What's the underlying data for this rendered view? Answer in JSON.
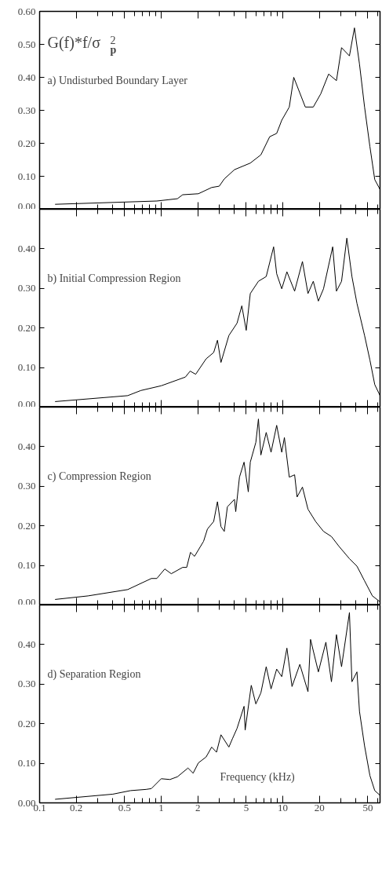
{
  "chart_data": [
    {
      "type": "line",
      "title": "a) Undisturbed Boundary Layer",
      "ylabel": "G(f)*f/σ$_{p}$$^{2}$",
      "log": "x",
      "xlim": [
        0.1,
        63
      ],
      "ylim": [
        0,
        0.6
      ],
      "tick_labels": "y",
      "xticks": [
        0.1,
        0.2,
        0.5,
        1,
        2,
        5,
        10,
        20,
        50
      ],
      "yticks": [
        {
          "value": 0,
          "label": "0.00"
        },
        {
          "value": 0.1,
          "label": "0.10"
        },
        {
          "value": 0.2,
          "label": "0.20"
        },
        {
          "value": 0.3,
          "label": "0.30"
        },
        {
          "value": 0.4,
          "label": "0.40"
        },
        {
          "value": 0.5,
          "label": "0.50"
        },
        {
          "value": 0.6,
          "label": "0.60"
        }
      ],
      "x": [
        0.134,
        0.92,
        1.36,
        1.5,
        2.02,
        2.6,
        3.0,
        3.3,
        4.0,
        5.4,
        6.6,
        7.8,
        8.9,
        9.8,
        11.3,
        12.3,
        15.3,
        17.8,
        20.5,
        23.8,
        27.6,
        30.4,
        35.3,
        38.8,
        42.7,
        47.0,
        52.0,
        57.0,
        63.0
      ],
      "series": [
        {
          "color": "#000000",
          "values": [
            0.015,
            0.025,
            0.032,
            0.044,
            0.047,
            0.066,
            0.07,
            0.092,
            0.12,
            0.14,
            0.165,
            0.22,
            0.23,
            0.27,
            0.31,
            0.4,
            0.31,
            0.31,
            0.35,
            0.41,
            0.39,
            0.49,
            0.465,
            0.55,
            0.44,
            0.31,
            0.19,
            0.09,
            0.06
          ]
        }
      ]
    },
    {
      "type": "line",
      "title": "b) Initial Compression Region",
      "log": "x",
      "xlim": [
        0.1,
        63
      ],
      "ylim": [
        0,
        0.5
      ],
      "tick_labels": "y",
      "xticks": [
        0.1,
        0.2,
        0.5,
        1,
        2,
        5,
        10,
        20,
        50
      ],
      "yticks": [
        {
          "value": 0,
          "label": "0.00"
        },
        {
          "value": 0.1,
          "label": "0.10"
        },
        {
          "value": 0.2,
          "label": "0.20"
        },
        {
          "value": 0.3,
          "label": "0.30"
        },
        {
          "value": 0.4,
          "label": "0.40"
        }
      ],
      "x": [
        0.134,
        0.53,
        0.68,
        1.0,
        1.58,
        1.73,
        1.92,
        2.34,
        2.7,
        2.9,
        3.1,
        3.6,
        4.2,
        4.6,
        5.0,
        5.4,
        6.3,
        7.3,
        8.4,
        8.9,
        9.8,
        10.8,
        12.5,
        14.5,
        16.1,
        17.8,
        19.6,
        21.6,
        25.7,
        27.6,
        30.4,
        33.6,
        37.0,
        40.7,
        47.0,
        52.0,
        57.0,
        63.0
      ],
      "series": [
        {
          "color": "#000000",
          "values": [
            0.014,
            0.029,
            0.042,
            0.054,
            0.076,
            0.091,
            0.083,
            0.122,
            0.138,
            0.169,
            0.113,
            0.181,
            0.212,
            0.256,
            0.194,
            0.287,
            0.318,
            0.33,
            0.405,
            0.337,
            0.299,
            0.342,
            0.293,
            0.368,
            0.287,
            0.318,
            0.268,
            0.299,
            0.405,
            0.293,
            0.318,
            0.427,
            0.33,
            0.262,
            0.181,
            0.119,
            0.057,
            0.029
          ]
        }
      ]
    },
    {
      "type": "line",
      "title": "c) Compression Region",
      "log": "x",
      "xlim": [
        0.1,
        63
      ],
      "ylim": [
        0,
        0.5
      ],
      "tick_labels": "y",
      "xticks": [
        0.1,
        0.2,
        0.5,
        1,
        2,
        5,
        10,
        20,
        50
      ],
      "yticks": [
        {
          "value": 0,
          "label": "0.00"
        },
        {
          "value": 0.1,
          "label": "0.10"
        },
        {
          "value": 0.2,
          "label": "0.20"
        },
        {
          "value": 0.3,
          "label": "0.30"
        },
        {
          "value": 0.4,
          "label": "0.40"
        }
      ],
      "x": [
        0.134,
        0.25,
        0.53,
        0.83,
        0.92,
        1.07,
        1.21,
        1.5,
        1.62,
        1.74,
        1.88,
        2.23,
        2.4,
        2.7,
        2.9,
        3.1,
        3.3,
        3.5,
        4.0,
        4.1,
        4.4,
        4.8,
        5.2,
        5.4,
        6.0,
        6.3,
        6.6,
        7.3,
        8.0,
        8.9,
        9.8,
        10.3,
        11.3,
        12.5,
        13.1,
        14.5,
        16.1,
        18.6,
        21.6,
        25.1,
        29.0,
        35.3,
        40.7,
        47.0,
        54.5,
        63.0
      ],
      "series": [
        {
          "color": "#000000",
          "values": [
            0.014,
            0.023,
            0.039,
            0.067,
            0.067,
            0.091,
            0.079,
            0.095,
            0.095,
            0.133,
            0.123,
            0.161,
            0.192,
            0.211,
            0.261,
            0.198,
            0.186,
            0.248,
            0.267,
            0.236,
            0.323,
            0.361,
            0.286,
            0.361,
            0.411,
            0.47,
            0.379,
            0.436,
            0.386,
            0.454,
            0.386,
            0.423,
            0.323,
            0.329,
            0.273,
            0.298,
            0.242,
            0.211,
            0.186,
            0.173,
            0.148,
            0.117,
            0.098,
            0.061,
            0.023,
            0.008
          ]
        }
      ]
    },
    {
      "type": "line",
      "title": "d) Separation Region",
      "xlabel": "Frequency (kHz)",
      "log": "x",
      "xlim": [
        0.1,
        63
      ],
      "ylim": [
        0,
        0.5
      ],
      "xticks": [
        0.1,
        0.2,
        0.5,
        1,
        2,
        5,
        10,
        20,
        50
      ],
      "yticks": [
        {
          "value": 0,
          "label": "0.00"
        },
        {
          "value": 0.1,
          "label": "0.10"
        },
        {
          "value": 0.2,
          "label": "0.20"
        },
        {
          "value": 0.3,
          "label": "0.30"
        },
        {
          "value": 0.4,
          "label": "0.40"
        }
      ],
      "x": [
        0.134,
        0.4,
        0.56,
        0.75,
        0.83,
        1.0,
        1.18,
        1.36,
        1.66,
        1.83,
        2.02,
        2.34,
        2.6,
        2.85,
        3.1,
        3.6,
        3.85,
        4.2,
        4.8,
        4.9,
        5.5,
        6.0,
        6.6,
        7.3,
        8.0,
        8.9,
        9.8,
        10.8,
        11.9,
        13.8,
        16.1,
        16.9,
        19.6,
        22.6,
        25.1,
        27.6,
        30.4,
        35.3,
        37.0,
        40.7,
        42.7,
        47.0,
        52.0,
        57.0,
        63.0
      ],
      "series": [
        {
          "color": "#000000",
          "values": [
            0.009,
            0.022,
            0.031,
            0.034,
            0.036,
            0.061,
            0.059,
            0.066,
            0.088,
            0.075,
            0.101,
            0.116,
            0.141,
            0.128,
            0.172,
            0.141,
            0.162,
            0.188,
            0.244,
            0.184,
            0.297,
            0.25,
            0.278,
            0.344,
            0.288,
            0.338,
            0.319,
            0.391,
            0.294,
            0.35,
            0.281,
            0.413,
            0.331,
            0.406,
            0.306,
            0.425,
            0.344,
            0.481,
            0.306,
            0.331,
            0.231,
            0.144,
            0.069,
            0.031,
            0.019
          ]
        }
      ]
    }
  ]
}
